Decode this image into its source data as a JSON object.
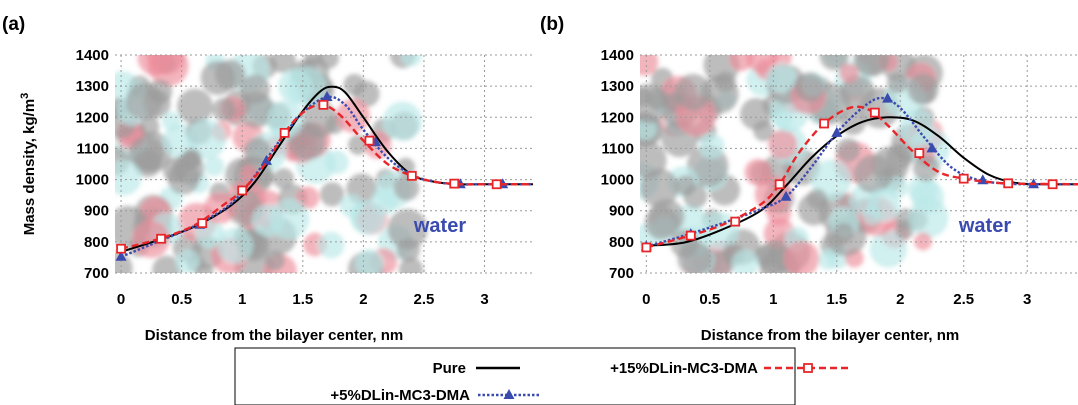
{
  "legend": {
    "entries": [
      {
        "label": "Pure",
        "series": "pure"
      },
      {
        "label": "+15%DLin-MC3-DMA",
        "series": "mc3_15"
      },
      {
        "label": "+5%DLin-MC3-DMA",
        "series": "mc3_5"
      }
    ]
  },
  "colors": {
    "pure": "#000000",
    "mc3_15": "#e8262a",
    "mc3_5": "#3a4bb0",
    "water_label": "#3a4bb0",
    "background_lipid_cyan": "#7fd6d6",
    "background_lipid_dark": "#4a4a4a",
    "background_lipid_red": "#e0304a"
  },
  "chart_data": [
    {
      "type": "line",
      "panel_label": "(a)",
      "annotation": "water",
      "xlabel": "Distance from the bilayer center, nm",
      "ylabel": "Mass density, kg/m",
      "ylabel_superscript": "3",
      "xlim": [
        -0.05,
        3.4
      ],
      "ylim": [
        700,
        1400
      ],
      "xticks": [
        "0",
        "0.5",
        "1",
        "1.5",
        "2",
        "2.5",
        "3"
      ],
      "xtick_values": [
        0,
        0.5,
        1,
        1.5,
        2,
        2.5,
        3
      ],
      "yticks": [
        "700",
        "800",
        "900",
        "1000",
        "1100",
        "1200",
        "1300",
        "1400"
      ],
      "ytick_values": [
        700,
        800,
        900,
        1000,
        1100,
        1200,
        1300,
        1400
      ],
      "grid": true,
      "legend_position": "bottom-center",
      "series": [
        {
          "name": "Pure",
          "key": "pure",
          "style": "solid",
          "marker": "none",
          "points": [
            [
              0,
              768
            ],
            [
              0.3,
              805
            ],
            [
              0.6,
              848
            ],
            [
              0.9,
              915
            ],
            [
              1.1,
              990
            ],
            [
              1.3,
              1105
            ],
            [
              1.5,
              1220
            ],
            [
              1.65,
              1285
            ],
            [
              1.75,
              1298
            ],
            [
              1.85,
              1280
            ],
            [
              2.0,
              1200
            ],
            [
              2.2,
              1090
            ],
            [
              2.4,
              1015
            ],
            [
              2.6,
              992
            ],
            [
              2.8,
              985
            ],
            [
              3.0,
              985
            ],
            [
              3.4,
              985
            ]
          ]
        },
        {
          "name": "+15%DLin-MC3-DMA",
          "key": "mc3_15",
          "style": "dashed",
          "marker": "square",
          "points": [
            [
              0,
              778
            ],
            [
              0.3,
              808
            ],
            [
              0.6,
              852
            ],
            [
              0.85,
              920
            ],
            [
              1.0,
              965
            ],
            [
              1.2,
              1055
            ],
            [
              1.35,
              1150
            ],
            [
              1.5,
              1215
            ],
            [
              1.65,
              1240
            ],
            [
              1.8,
              1210
            ],
            [
              2.0,
              1125
            ],
            [
              2.2,
              1050
            ],
            [
              2.4,
              1012
            ],
            [
              2.6,
              992
            ],
            [
              2.8,
              985
            ],
            [
              3.0,
              985
            ],
            [
              3.4,
              985
            ]
          ],
          "marker_points": [
            [
              0,
              778
            ],
            [
              0.33,
              810
            ],
            [
              0.67,
              860
            ],
            [
              1.0,
              965
            ],
            [
              1.35,
              1150
            ],
            [
              1.67,
              1240
            ],
            [
              2.05,
              1125
            ],
            [
              2.4,
              1012
            ],
            [
              2.75,
              987
            ],
            [
              3.1,
              985
            ]
          ]
        },
        {
          "name": "+5%DLin-MC3-DMA",
          "key": "mc3_5",
          "style": "dotted",
          "marker": "triangle",
          "points": [
            [
              0,
              752
            ],
            [
              0.3,
              800
            ],
            [
              0.6,
              850
            ],
            [
              0.9,
              920
            ],
            [
              1.1,
              1010
            ],
            [
              1.3,
              1120
            ],
            [
              1.5,
              1215
            ],
            [
              1.7,
              1265
            ],
            [
              1.85,
              1240
            ],
            [
              2.0,
              1160
            ],
            [
              2.2,
              1070
            ],
            [
              2.4,
              1015
            ],
            [
              2.6,
              992
            ],
            [
              2.8,
              985
            ],
            [
              3.0,
              985
            ],
            [
              3.4,
              985
            ]
          ],
          "marker_points": [
            [
              0,
              752
            ],
            [
              0.65,
              855
            ],
            [
              1.2,
              1060
            ],
            [
              1.7,
              1265
            ],
            [
              2.1,
              1120
            ],
            [
              2.8,
              985
            ],
            [
              3.15,
              985
            ]
          ]
        }
      ]
    },
    {
      "type": "line",
      "panel_label": "(b)",
      "annotation": "water",
      "xlabel": "Distance from the bilayer center, nm",
      "ylabel": "",
      "xlim": [
        -0.05,
        3.4
      ],
      "ylim": [
        700,
        1400
      ],
      "xticks": [
        "0",
        "0.5",
        "1",
        "1.5",
        "2",
        "2.5",
        "3"
      ],
      "xtick_values": [
        0,
        0.5,
        1,
        1.5,
        2,
        2.5,
        3
      ],
      "yticks": [
        "700",
        "800",
        "900",
        "1000",
        "1100",
        "1200",
        "1300",
        "1400"
      ],
      "ytick_values": [
        700,
        800,
        900,
        1000,
        1100,
        1200,
        1300,
        1400
      ],
      "grid": true,
      "series": [
        {
          "name": "Pure",
          "key": "pure",
          "style": "solid",
          "marker": "none",
          "points": [
            [
              0,
              788
            ],
            [
              0.3,
              798
            ],
            [
              0.6,
              840
            ],
            [
              0.9,
              900
            ],
            [
              1.1,
              980
            ],
            [
              1.3,
              1070
            ],
            [
              1.5,
              1140
            ],
            [
              1.7,
              1185
            ],
            [
              1.9,
              1200
            ],
            [
              2.1,
              1190
            ],
            [
              2.3,
              1140
            ],
            [
              2.5,
              1070
            ],
            [
              2.7,
              1015
            ],
            [
              2.9,
              990
            ],
            [
              3.1,
              985
            ],
            [
              3.4,
              985
            ]
          ]
        },
        {
          "name": "+15%DLin-MC3-DMA",
          "key": "mc3_15",
          "style": "dashed",
          "marker": "square",
          "points": [
            [
              0,
              782
            ],
            [
              0.3,
              815
            ],
            [
              0.6,
              855
            ],
            [
              0.9,
              920
            ],
            [
              1.05,
              985
            ],
            [
              1.2,
              1085
            ],
            [
              1.4,
              1180
            ],
            [
              1.6,
              1230
            ],
            [
              1.75,
              1225
            ],
            [
              1.9,
              1175
            ],
            [
              2.1,
              1090
            ],
            [
              2.3,
              1025
            ],
            [
              2.5,
              1003
            ],
            [
              2.7,
              992
            ],
            [
              2.9,
              987
            ],
            [
              3.4,
              985
            ]
          ],
          "marker_points": [
            [
              0,
              782
            ],
            [
              0.35,
              820
            ],
            [
              0.7,
              865
            ],
            [
              1.05,
              985
            ],
            [
              1.4,
              1180
            ],
            [
              1.8,
              1215
            ],
            [
              2.15,
              1085
            ],
            [
              2.5,
              1003
            ],
            [
              2.85,
              988
            ],
            [
              3.2,
              985
            ]
          ]
        },
        {
          "name": "+5%DLin-MC3-DMA",
          "key": "mc3_5",
          "style": "dotted",
          "marker": "triangle",
          "points": [
            [
              0,
              785
            ],
            [
              0.3,
              820
            ],
            [
              0.6,
              860
            ],
            [
              0.9,
              905
            ],
            [
              1.1,
              945
            ],
            [
              1.3,
              1040
            ],
            [
              1.5,
              1150
            ],
            [
              1.7,
              1230
            ],
            [
              1.85,
              1262
            ],
            [
              2.0,
              1230
            ],
            [
              2.2,
              1130
            ],
            [
              2.4,
              1040
            ],
            [
              2.6,
              1000
            ],
            [
              2.8,
              988
            ],
            [
              3.0,
              985
            ],
            [
              3.4,
              985
            ]
          ],
          "marker_points": [
            [
              0,
              785
            ],
            [
              0.35,
              825
            ],
            [
              1.1,
              945
            ],
            [
              1.5,
              1150
            ],
            [
              1.9,
              1260
            ],
            [
              2.25,
              1100
            ],
            [
              2.65,
              998
            ],
            [
              3.05,
              985
            ]
          ]
        }
      ]
    }
  ]
}
